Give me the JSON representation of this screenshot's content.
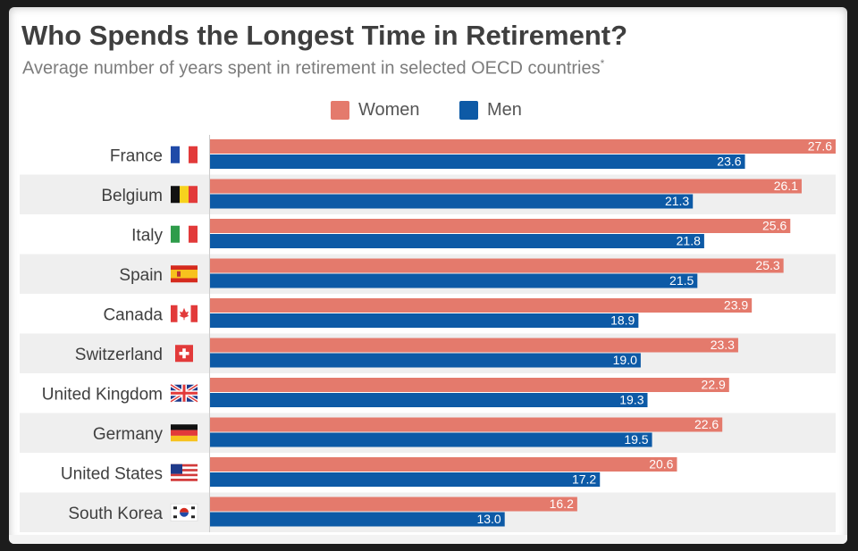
{
  "header": {
    "title": "Who Spends the Longest Time in Retirement?",
    "subtitle": "Average number of years spent in retirement in selected OECD countries",
    "subtitle_mark": "*"
  },
  "colors": {
    "women": "#e47a6c",
    "men": "#0d5aa6",
    "row_stripe": "#efefef",
    "axis": "#cccccc"
  },
  "chart_data": {
    "type": "bar",
    "orientation": "horizontal",
    "title": "Who Spends the Longest Time in Retirement?",
    "subtitle": "Average number of years spent in retirement in selected OECD countries*",
    "categories": [
      "France",
      "Belgium",
      "Italy",
      "Spain",
      "Canada",
      "Switzerland",
      "United Kingdom",
      "Germany",
      "United States",
      "South Korea"
    ],
    "flags": [
      "flag-france-icon",
      "flag-belgium-icon",
      "flag-italy-icon",
      "flag-spain-icon",
      "flag-canada-icon",
      "flag-switzerland-icon",
      "flag-uk-icon",
      "flag-germany-icon",
      "flag-usa-icon",
      "flag-south-korea-icon"
    ],
    "series": [
      {
        "name": "Women",
        "values": [
          27.6,
          26.1,
          25.6,
          25.3,
          23.9,
          23.3,
          22.9,
          22.6,
          20.6,
          16.2
        ]
      },
      {
        "name": "Men",
        "values": [
          23.6,
          21.3,
          21.8,
          21.5,
          18.9,
          19.0,
          19.3,
          19.5,
          17.2,
          13.0
        ]
      }
    ],
    "value_labels": {
      "Women": [
        "27.6",
        "26.1",
        "25.6",
        "25.3",
        "23.9",
        "23.3",
        "22.9",
        "22.6",
        "20.6",
        "16.2"
      ],
      "Men": [
        "23.6",
        "21.3",
        "21.8",
        "21.5",
        "18.9",
        "19.0",
        "19.3",
        "19.5",
        "17.2",
        "13.0"
      ]
    },
    "xlim": [
      0,
      27.6
    ],
    "legend_position": "top-center",
    "grid": false
  }
}
